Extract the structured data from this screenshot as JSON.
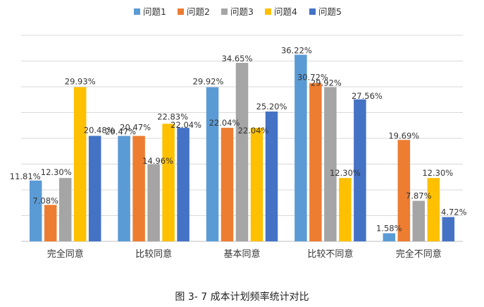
{
  "chart_data": {
    "type": "bar",
    "title": "",
    "xlabel": "",
    "ylabel": "",
    "ylim": [
      0,
      40
    ],
    "grid": true,
    "legend_position": "top",
    "categories": [
      "完全同意",
      "比较同意",
      "基本同意",
      "比较不同意",
      "完全不同意"
    ],
    "series": [
      {
        "name": "问题1",
        "color": "#5B9BD5",
        "values": [
          11.81,
          20.47,
          29.92,
          36.22,
          1.58
        ],
        "labels": [
          "11.81%",
          "20.47%",
          "29.92%",
          "36.22%",
          "1.58%"
        ]
      },
      {
        "name": "问题2",
        "color": "#ED7D31",
        "values": [
          7.08,
          20.47,
          22.04,
          30.72,
          19.69
        ],
        "labels": [
          "7.08%",
          "20.47%",
          "22.04%",
          "30.72%",
          "19.69%"
        ]
      },
      {
        "name": "问题3",
        "color": "#A5A5A5",
        "values": [
          12.3,
          14.96,
          34.65,
          29.92,
          7.87
        ],
        "labels": [
          "12.30%",
          "14.96%",
          "34.65%",
          "29.92%",
          "7.87%"
        ]
      },
      {
        "name": "问题4",
        "color": "#FFC000",
        "values": [
          29.93,
          22.83,
          22.04,
          12.3,
          12.3
        ],
        "labels": [
          "29.93%",
          "22.83%",
          "22.04%",
          "12.30%",
          "12.30%"
        ]
      },
      {
        "name": "问题5",
        "color": "#4472C4",
        "values": [
          20.48,
          22.04,
          25.2,
          27.56,
          4.72
        ],
        "labels": [
          "20.48%",
          "22.04%",
          "25.20%",
          "27.56%",
          "4.72%"
        ]
      }
    ]
  },
  "caption": "图 3- 7 成本计划频率统计对比"
}
